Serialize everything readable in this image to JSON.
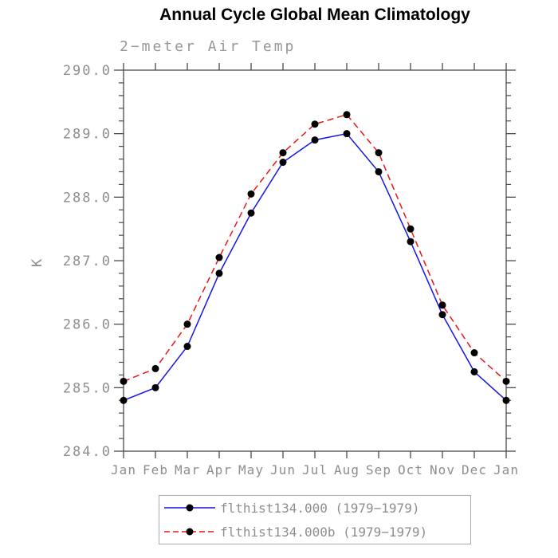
{
  "page": {
    "background": "#ffffff"
  },
  "chart_data": {
    "type": "line",
    "title": "Annual Cycle Global Mean Climatology",
    "subtitle": "2−meter Air Temp",
    "xlabel": "",
    "ylabel": "K",
    "x_categories": [
      "Jan",
      "Feb",
      "Mar",
      "Apr",
      "May",
      "Jun",
      "Jul",
      "Aug",
      "Sep",
      "Oct",
      "Nov",
      "Dec",
      "Jan"
    ],
    "ylim": [
      284.0,
      290.0
    ],
    "y_major_step": 1.0,
    "y_minor_step": 0.2,
    "y_tick_labels": [
      "290.0",
      "289.0",
      "288.0",
      "287.0",
      "286.0",
      "285.0",
      "284.0"
    ],
    "grid": false,
    "legend_position": "bottom-center",
    "series": [
      {
        "label": "flthist134.000 (1979−1979)",
        "color": "#1414e6",
        "line_style": "solid",
        "marker": "circle",
        "marker_color": "#000000",
        "values": [
          284.8,
          285.0,
          285.65,
          286.8,
          287.75,
          288.55,
          288.9,
          289.0,
          288.4,
          287.3,
          286.15,
          285.25,
          284.8
        ]
      },
      {
        "label": "flthist134.000b (1979−1979)",
        "color": "#ee1414",
        "line_style": "dashed",
        "marker": "circle",
        "marker_color": "#000000",
        "values": [
          285.1,
          285.3,
          286.0,
          287.05,
          288.05,
          288.7,
          289.15,
          289.3,
          288.7,
          287.5,
          286.3,
          285.55,
          285.1
        ]
      }
    ],
    "colors": {
      "axis": "#4a4a4a",
      "tick_labels": "#8e8e8e",
      "title": "#000000",
      "subtitle": "#979797",
      "legend_border": "#ababab",
      "legend_text": "#8e8e8e"
    }
  }
}
